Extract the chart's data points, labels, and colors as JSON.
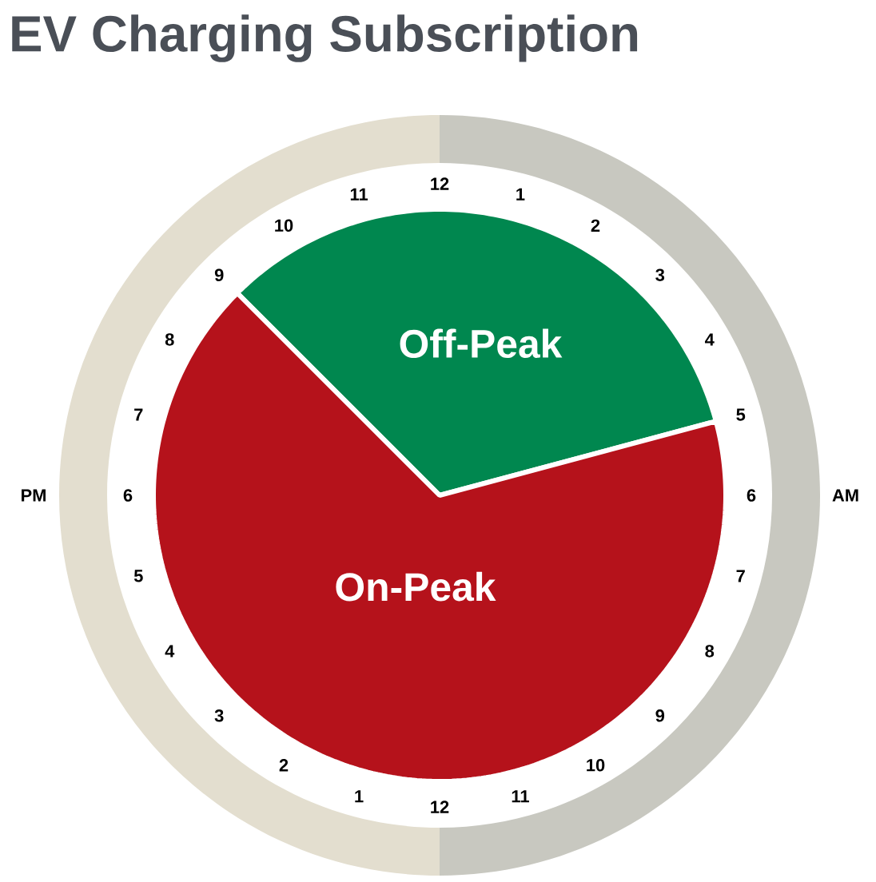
{
  "chart_data": {
    "type": "pie",
    "title": "EV Charging Subscription",
    "categories": [
      "Off-Peak",
      "On-Peak"
    ],
    "values": [
      33.33,
      66.67
    ],
    "colors": [
      "#00874f",
      "#b5121b"
    ],
    "annotations": [
      "12",
      "1",
      "2",
      "3",
      "4",
      "5",
      "6",
      "7",
      "8",
      "9",
      "10",
      "11",
      "12",
      "1",
      "2",
      "3",
      "4",
      "5",
      "6",
      "7",
      "8",
      "9",
      "10",
      "11",
      "PM",
      "AM"
    ]
  }
}
